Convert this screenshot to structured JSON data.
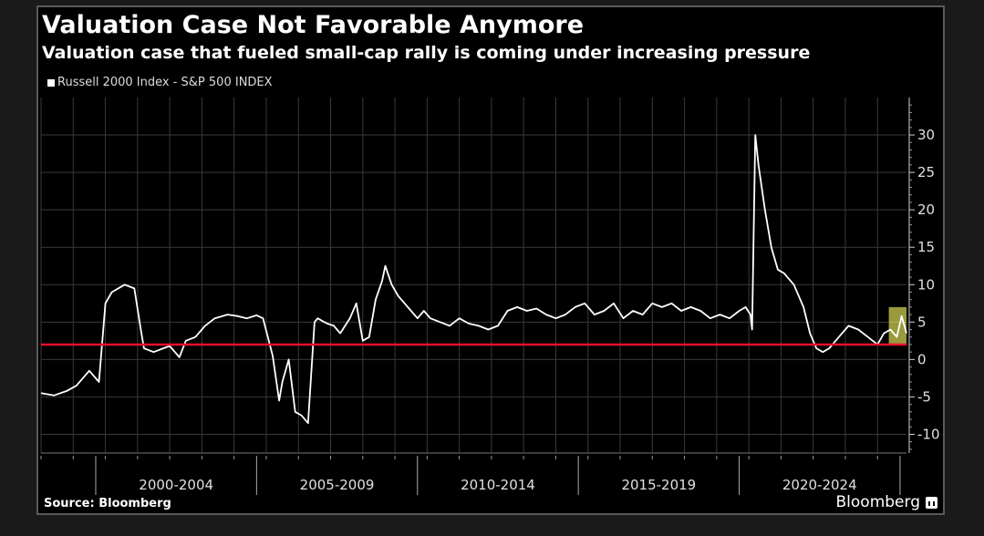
{
  "chart_data": {
    "type": "line",
    "title": "Valuation Case Not Favorable Anymore",
    "subtitle": "Valuation case that fueled small-cap rally is coming under increasing pressure",
    "legend": "Russell 2000 Index - S&P 500 INDEX",
    "source": "Source: Bloomberg",
    "brand": "Bloomberg",
    "x_tick_labels": [
      "2000-2004",
      "2005-2009",
      "2010-2014",
      "2015-2019",
      "2020-2024"
    ],
    "y_tick_labels": [
      "30",
      "25",
      "20",
      "15",
      "10",
      "5",
      "0",
      "-5",
      "-10"
    ],
    "y_ticks": [
      30,
      25,
      20,
      15,
      10,
      5,
      0,
      -5,
      -10
    ],
    "xlim": [
      1998.0,
      2024.9
    ],
    "ylim": [
      -12.5,
      35
    ],
    "reference_line": 2,
    "highlight": {
      "x": [
        2024.35,
        2024.9
      ],
      "y": [
        2,
        7
      ]
    },
    "grid": true,
    "colors": {
      "series": "#ffffff",
      "reference_line": "#e8112d",
      "highlight": "#ffff66",
      "grid": "#3a3a3a",
      "background": "#000000"
    },
    "series": [
      {
        "x": [
          1998.0,
          1998.4,
          1998.8,
          1999.1,
          1999.5,
          1999.8,
          2000.0,
          2000.2,
          2000.6,
          2000.9,
          2001.1,
          2001.2,
          2001.5,
          2001.8,
          2002.0,
          2002.3,
          2002.5,
          2002.8,
          2003.1,
          2003.4,
          2003.8,
          2004.1,
          2004.4,
          2004.7,
          2004.9,
          2005.2,
          2005.4,
          2005.5,
          2005.7,
          2005.9,
          2006.1,
          2006.3,
          2006.5,
          2006.6,
          2006.8,
          2006.9,
          2007.1,
          2007.3,
          2007.6,
          2007.8,
          2008.0,
          2008.2,
          2008.4,
          2008.6,
          2008.7,
          2008.9,
          2009.1,
          2009.3,
          2009.5,
          2009.7,
          2009.9,
          2010.1,
          2010.4,
          2010.7,
          2011.0,
          2011.3,
          2011.6,
          2011.9,
          2012.2,
          2012.5,
          2012.8,
          2013.1,
          2013.4,
          2013.7,
          2014.0,
          2014.3,
          2014.6,
          2014.9,
          2015.2,
          2015.5,
          2015.8,
          2016.1,
          2016.4,
          2016.7,
          2017.0,
          2017.3,
          2017.6,
          2017.9,
          2018.2,
          2018.5,
          2018.8,
          2019.1,
          2019.4,
          2019.7,
          2019.9,
          2020.05,
          2020.1,
          2020.2,
          2020.3,
          2020.5,
          2020.7,
          2020.9,
          2021.1,
          2021.4,
          2021.7,
          2021.9,
          2022.1,
          2022.3,
          2022.5,
          2022.7,
          2022.9,
          2023.1,
          2023.4,
          2023.7,
          2024.0,
          2024.2,
          2024.4,
          2024.6,
          2024.75,
          2024.9
        ],
        "y": [
          -4.5,
          -4.8,
          -4.2,
          -3.5,
          -1.5,
          -3.0,
          7.5,
          9.0,
          10.0,
          9.5,
          4.0,
          1.5,
          1.0,
          1.5,
          1.8,
          0.3,
          2.5,
          3.0,
          4.5,
          5.5,
          6.0,
          5.8,
          5.5,
          5.9,
          5.5,
          0.5,
          -5.5,
          -3.0,
          0.0,
          -7.0,
          -7.5,
          -8.5,
          5.0,
          5.5,
          5.0,
          4.8,
          4.5,
          3.5,
          5.5,
          7.5,
          2.5,
          3.0,
          8.0,
          10.5,
          12.5,
          10.0,
          8.5,
          7.5,
          6.5,
          5.5,
          6.5,
          5.5,
          5.0,
          4.5,
          5.5,
          4.8,
          4.5,
          4.0,
          4.5,
          6.5,
          7.0,
          6.5,
          6.8,
          6.0,
          5.5,
          6.0,
          7.0,
          7.5,
          6.0,
          6.5,
          7.5,
          5.5,
          6.5,
          6.0,
          7.5,
          7.0,
          7.5,
          6.5,
          7.0,
          6.5,
          5.5,
          6.0,
          5.5,
          6.5,
          7.0,
          6.0,
          4.0,
          30.0,
          26.0,
          20.0,
          15.0,
          12.0,
          11.5,
          10.0,
          7.0,
          3.5,
          1.5,
          1.0,
          1.5,
          2.5,
          3.5,
          4.5,
          4.0,
          3.0,
          2.0,
          3.5,
          4.0,
          3.0,
          5.8,
          3.5
        ]
      }
    ]
  }
}
